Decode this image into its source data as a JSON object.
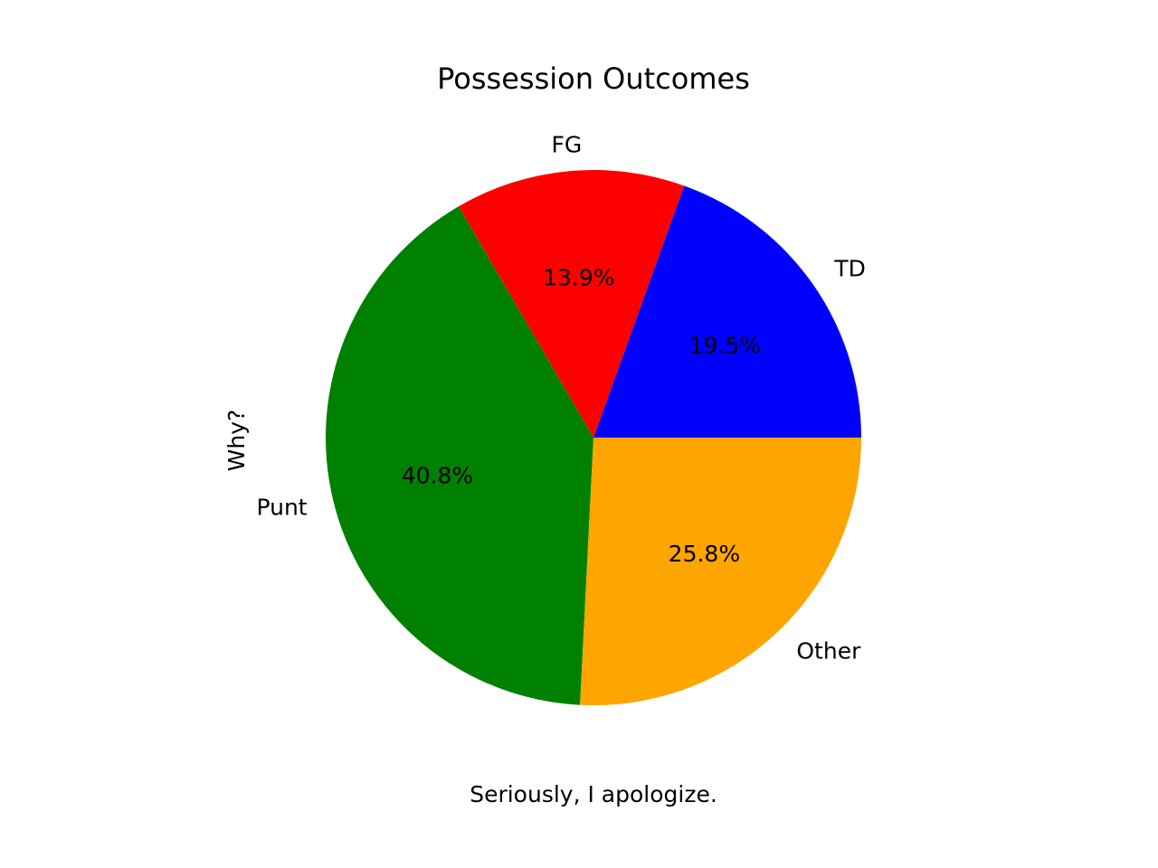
{
  "chart_data": {
    "type": "pie",
    "title": "Possession Outcomes",
    "ylabel": "Why?",
    "xlabel": "Seriously, I apologize.",
    "start_angle_deg": 0,
    "direction": "counterclockwise",
    "slices": [
      {
        "label": "TD",
        "value": 19.5,
        "pct_label": "19.5%",
        "color": "#0000ff"
      },
      {
        "label": "FG",
        "value": 13.9,
        "pct_label": "13.9%",
        "color": "#ff0000"
      },
      {
        "label": "Punt",
        "value": 40.8,
        "pct_label": "40.8%",
        "color": "#008000"
      },
      {
        "label": "Other",
        "value": 25.8,
        "pct_label": "25.8%",
        "color": "#ffa500"
      }
    ]
  }
}
